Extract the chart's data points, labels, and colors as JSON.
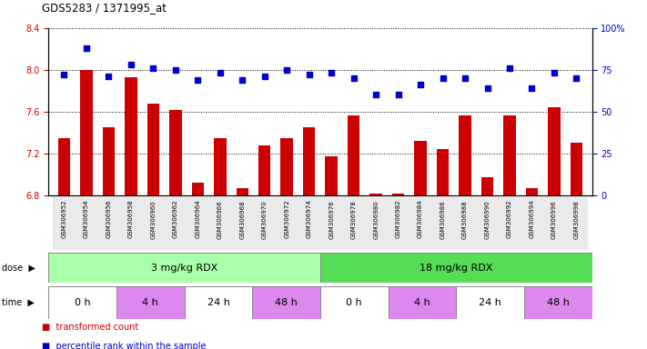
{
  "title": "GDS5283 / 1371995_at",
  "samples": [
    "GSM306952",
    "GSM306954",
    "GSM306956",
    "GSM306958",
    "GSM306960",
    "GSM306962",
    "GSM306964",
    "GSM306966",
    "GSM306968",
    "GSM306970",
    "GSM306972",
    "GSM306974",
    "GSM306976",
    "GSM306978",
    "GSM306980",
    "GSM306982",
    "GSM306984",
    "GSM306986",
    "GSM306988",
    "GSM306990",
    "GSM306992",
    "GSM306994",
    "GSM306996",
    "GSM306998"
  ],
  "bar_values": [
    7.35,
    8.0,
    7.45,
    7.93,
    7.68,
    7.62,
    6.92,
    7.35,
    6.87,
    7.28,
    7.35,
    7.45,
    7.17,
    7.56,
    6.82,
    6.82,
    7.32,
    7.24,
    7.56,
    6.97,
    7.56,
    6.87,
    7.64,
    7.3
  ],
  "dot_values": [
    72,
    88,
    71,
    78,
    76,
    75,
    69,
    73,
    69,
    71,
    75,
    72,
    73,
    70,
    60,
    60,
    66,
    70,
    70,
    64,
    76,
    64,
    73,
    70
  ],
  "ylim_left": [
    6.8,
    8.4
  ],
  "ylim_right": [
    0,
    100
  ],
  "yticks_left": [
    6.8,
    7.2,
    7.6,
    8.0,
    8.4
  ],
  "yticks_right": [
    0,
    25,
    50,
    75,
    100
  ],
  "bar_color": "#cc0000",
  "dot_color": "#0000cc",
  "dose_groups": [
    {
      "label": "3 mg/kg RDX",
      "start": 0,
      "end": 12,
      "color": "#aaffaa"
    },
    {
      "label": "18 mg/kg RDX",
      "start": 12,
      "end": 24,
      "color": "#55dd55"
    }
  ],
  "time_groups": [
    {
      "label": "0 h",
      "start": 0,
      "end": 3,
      "color": "#ffffff"
    },
    {
      "label": "4 h",
      "start": 3,
      "end": 6,
      "color": "#dd88ee"
    },
    {
      "label": "24 h",
      "start": 6,
      "end": 9,
      "color": "#ffffff"
    },
    {
      "label": "48 h",
      "start": 9,
      "end": 12,
      "color": "#dd88ee"
    },
    {
      "label": "0 h",
      "start": 12,
      "end": 15,
      "color": "#ffffff"
    },
    {
      "label": "4 h",
      "start": 15,
      "end": 18,
      "color": "#dd88ee"
    },
    {
      "label": "24 h",
      "start": 18,
      "end": 21,
      "color": "#ffffff"
    },
    {
      "label": "48 h",
      "start": 21,
      "end": 24,
      "color": "#dd88ee"
    }
  ],
  "legend_items": [
    {
      "label": "transformed count",
      "color": "#cc0000"
    },
    {
      "label": "percentile rank within the sample",
      "color": "#0000cc"
    }
  ]
}
